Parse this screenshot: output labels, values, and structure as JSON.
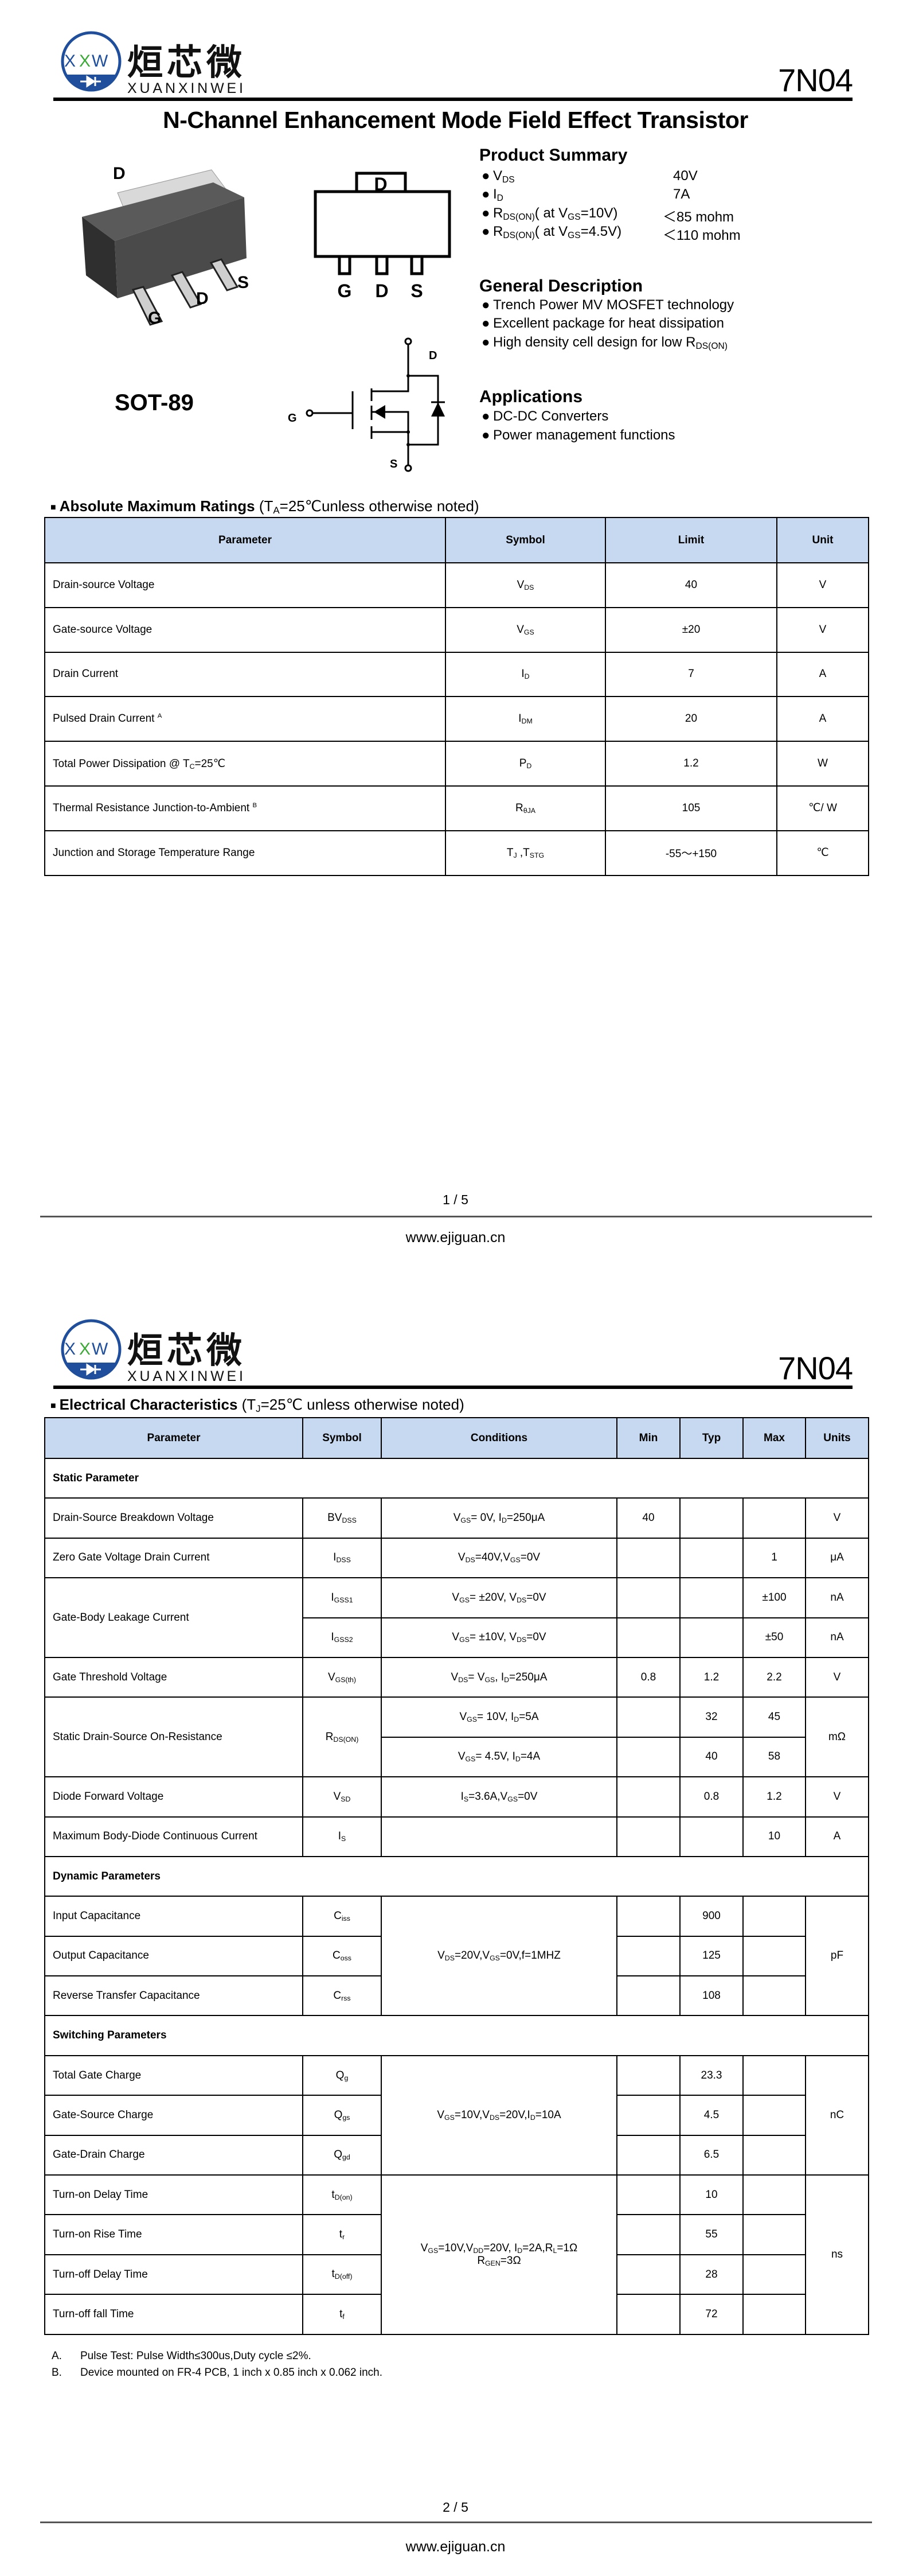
{
  "brand": {
    "logo_text_cn": "烜芯微",
    "logo_text_en": "XUANXINWEI",
    "logo_mark": "XXW",
    "colors": {
      "blue": "#1f4f9c",
      "green": "#3aa935"
    }
  },
  "part_number": "7N04",
  "title": "N-Channel Enhancement Mode Field Effect Transistor",
  "package": {
    "name": "SOT-89",
    "pins_3d": [
      "D",
      "G",
      "D",
      "S"
    ],
    "footprint_tab": "D",
    "footprint_pins": [
      "G",
      "D",
      "S"
    ],
    "schematic": {
      "drain": "D",
      "gate": "G",
      "source": "S"
    }
  },
  "product_summary": {
    "heading": "Product Summary",
    "items": [
      {
        "label": "V_{DS}",
        "value": "40V"
      },
      {
        "label": "I_{D}",
        "value": "7A"
      },
      {
        "label": "R_{DS(ON)}( at V_{GS}=10V)",
        "value": "＜85 mohm"
      },
      {
        "label": "R_{DS(ON)}( at V_{GS}=4.5V)",
        "value": "＜110 mohm"
      }
    ]
  },
  "general_description": {
    "heading": "General Description",
    "items": [
      "Trench Power MV MOSFET technology",
      "Excellent package for heat dissipation",
      "High density cell design for low R_{DS(ON)}"
    ]
  },
  "applications": {
    "heading": "Applications",
    "items": [
      "DC-DC Converters",
      "Power management functions"
    ]
  },
  "bullet": "●",
  "abs_max": {
    "heading_bold": "Absolute Maximum Ratings",
    "heading_note": " (T_{A}=25℃unless otherwise noted)",
    "columns": [
      "Parameter",
      "Symbol",
      "Limit",
      "Unit"
    ],
    "rows": [
      {
        "param": "Drain-source Voltage",
        "symbol": "V_{DS}",
        "limit": "40",
        "unit": "V"
      },
      {
        "param": "Gate-source Voltage",
        "symbol": "V_{GS}",
        "limit": "±20",
        "unit": "V"
      },
      {
        "param": "Drain Current",
        "symbol": "I_{D}",
        "limit": "7",
        "unit": "A"
      },
      {
        "param": "Pulsed Drain Current ^{A}",
        "symbol": "I_{DM}",
        "limit": "20",
        "unit": "A"
      },
      {
        "param": "Total Power Dissipation @ T_{C}=25℃",
        "symbol": "P_{D}",
        "limit": "1.2",
        "unit": "W"
      },
      {
        "param": "Thermal Resistance Junction-to-Ambient  ^{B}",
        "symbol": "R_{θJA}",
        "limit": "105",
        "unit": "℃/ W"
      },
      {
        "param": "Junction and Storage Temperature Range",
        "symbol": "T_{J} ,T_{STG}",
        "limit": "-55～+150",
        "unit": "℃"
      }
    ]
  },
  "electrical": {
    "heading_bold": "Electrical Characteristics",
    "heading_note": " (T_{J}=25℃ unless otherwise noted)",
    "columns": [
      "Parameter",
      "Symbol",
      "Conditions",
      "Min",
      "Typ",
      "Max",
      "Units"
    ],
    "rows": [
      {
        "section": "Static Parameter"
      },
      {
        "param": "Drain-Source Breakdown Voltage",
        "symbol": "BV_{DSS}",
        "cond": "V_{GS}= 0V, I_{D}=250μA",
        "min": "40",
        "typ": "",
        "max": "",
        "unit": "V"
      },
      {
        "param": "Zero Gate Voltage Drain Current",
        "symbol": "I_{DSS}",
        "cond": "V_{DS}=40V,V_{GS}=0V",
        "min": "",
        "typ": "",
        "max": "1",
        "unit": "μA"
      },
      {
        "param": "Gate-Body Leakage Current",
        "symbol": "I_{GSS1}",
        "cond": "V_{GS}= ±20V, V_{DS}=0V",
        "min": "",
        "typ": "",
        "max": "±100",
        "unit": "nA"
      },
      {
        "symbol": "I_{GSS2}",
        "cond": "V_{GS}= ±10V, V_{DS}=0V",
        "min": "",
        "typ": "",
        "max": "±50",
        "unit": "nA"
      },
      {
        "param": "Gate Threshold Voltage",
        "symbol": "V_{GS(th)}",
        "cond": "V_{DS}= V_{GS}, I_{D}=250μA",
        "min": "0.8",
        "typ": "1.2",
        "max": "2.2",
        "unit": "V"
      },
      {
        "param": "Static Drain-Source On-Resistance",
        "symbol": "R_{DS(ON)}",
        "cond": "V_{GS}= 10V, I_{D}=5A",
        "min": "",
        "typ": "32",
        "max": "45",
        "unit": "mΩ"
      },
      {
        "cond": "V_{GS}= 4.5V, I_{D}=4A",
        "min": "",
        "typ": "40",
        "max": "58"
      },
      {
        "param": "Diode Forward Voltage",
        "symbol": "V_{SD}",
        "cond": "I_{S}=3.6A,V_{GS}=0V",
        "min": "",
        "typ": "0.8",
        "max": "1.2",
        "unit": "V"
      },
      {
        "param": "Maximum Body-Diode Continuous Current",
        "symbol": "I_{S}",
        "cond": "",
        "min": "",
        "typ": "",
        "max": "10",
        "unit": "A"
      },
      {
        "section": "Dynamic Parameters"
      },
      {
        "param": "Input Capacitance",
        "symbol": "C_{iss}",
        "cond": "V_{DS}=20V,V_{GS}=0V,f=1MHZ",
        "min": "",
        "typ": "900",
        "max": "",
        "unit": "pF"
      },
      {
        "param": "Output Capacitance",
        "symbol": "C_{oss}",
        "min": "",
        "typ": "125",
        "max": ""
      },
      {
        "param": "Reverse Transfer Capacitance",
        "symbol": "C_{rss}",
        "min": "",
        "typ": "108",
        "max": ""
      },
      {
        "section": "Switching Parameters"
      },
      {
        "param": "Total Gate Charge",
        "symbol": "Q_{g}",
        "cond": "V_{GS}=10V,V_{DS}=20V,I_{D}=10A",
        "min": "",
        "typ": "23.3",
        "max": "",
        "unit": "nC"
      },
      {
        "param": "Gate-Source Charge",
        "symbol": "Q_{gs}",
        "min": "",
        "typ": "4.5",
        "max": ""
      },
      {
        "param": "Gate-Drain Charge",
        "symbol": "Q_{gd}",
        "min": "",
        "typ": "6.5",
        "max": ""
      },
      {
        "param": "Turn-on Delay Time",
        "symbol": "t_{D(on)}",
        "cond": "V_{GS}=10V,V_{DD}=20V, I_{D}=2A,R_{L}=1Ω\nR_{GEN}=3Ω",
        "min": "",
        "typ": "10",
        "max": "",
        "unit": "ns"
      },
      {
        "param": "Turn-on Rise Time",
        "symbol": "t_{r}",
        "min": "",
        "typ": "55",
        "max": ""
      },
      {
        "param": "Turn-off Delay Time",
        "symbol": "t_{D(off)}",
        "min": "",
        "typ": "28",
        "max": ""
      },
      {
        "param": "Turn-off fall Time",
        "symbol": "t_{f}",
        "min": "",
        "typ": "72",
        "max": ""
      }
    ],
    "notes": [
      {
        "label": "A.",
        "text": "Pulse Test: Pulse Width≤300us,Duty cycle ≤2%."
      },
      {
        "label": "B.",
        "text": "Device mounted on FR-4 PCB, 1 inch x 0.85 inch x 0.062 inch."
      }
    ]
  },
  "footer": {
    "pages": [
      "1 / 5",
      "2 / 5"
    ],
    "website": "www.ejiguan.cn"
  }
}
